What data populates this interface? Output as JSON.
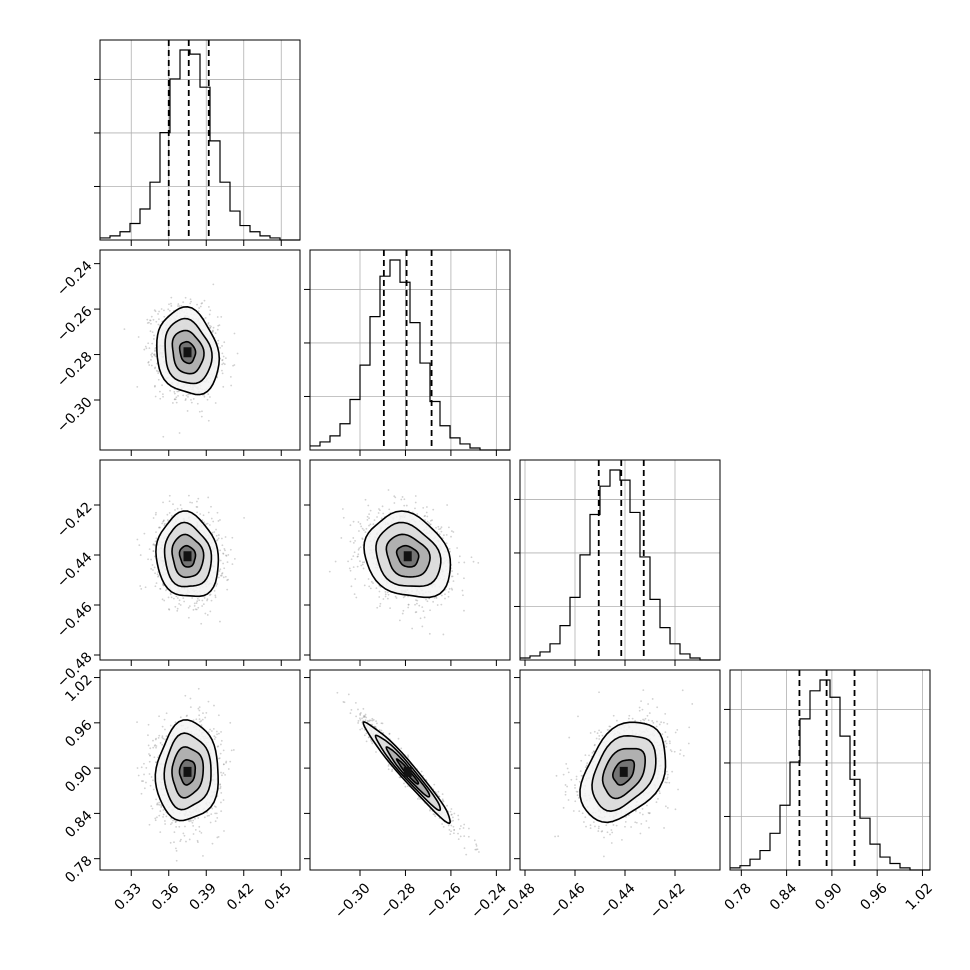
{
  "chart_data": {
    "type": "corner",
    "grid": true,
    "parameters": [
      {
        "range": [
          0.305,
          0.465
        ],
        "ticks": [
          0.33,
          0.36,
          0.39,
          0.42,
          0.45
        ],
        "tick_labels": [
          "0.33",
          "0.36",
          "0.39",
          "0.42",
          "0.45"
        ],
        "mean": 0.375,
        "sd": 0.0125,
        "quantiles": [
          0.36,
          0.376,
          0.392
        ]
      },
      {
        "range": [
          -0.322,
          -0.234
        ],
        "ticks": [
          -0.3,
          -0.28,
          -0.26,
          -0.24
        ],
        "tick_labels": [
          "−0.30",
          "−0.28",
          "−0.26",
          "−0.24"
        ],
        "mean": -0.279,
        "sd": 0.0095,
        "quantiles": [
          -0.2895,
          -0.2795,
          -0.2685
        ]
      },
      {
        "range": [
          -0.482,
          -0.402
        ],
        "ticks": [
          -0.48,
          -0.46,
          -0.44,
          -0.42
        ],
        "tick_labels": [
          "−0.48",
          "−0.46",
          "−0.44",
          "−0.42"
        ],
        "mean": -0.4405,
        "sd": 0.0085,
        "quantiles": [
          -0.4505,
          -0.4415,
          -0.4325
        ]
      },
      {
        "range": [
          0.765,
          1.03
        ],
        "ticks": [
          0.78,
          0.84,
          0.9,
          0.96,
          1.02
        ],
        "tick_labels": [
          "0.78",
          "0.84",
          "0.90",
          "0.96",
          "1.02"
        ],
        "mean": 0.895,
        "sd": 0.033,
        "quantiles": [
          0.857,
          0.893,
          0.93
        ]
      }
    ],
    "histograms": [
      {
        "counts": [
          1,
          2,
          4,
          8,
          15,
          28,
          52,
          78,
          92,
          90,
          74,
          48,
          28,
          14,
          7,
          4,
          2,
          1,
          0,
          0
        ]
      },
      {
        "counts": [
          2,
          4,
          7,
          13,
          25,
          42,
          66,
          86,
          94,
          83,
          63,
          43,
          24,
          12,
          6,
          3,
          1,
          0,
          0,
          0
        ]
      },
      {
        "counts": [
          1,
          2,
          4,
          8,
          17,
          31,
          52,
          72,
          86,
          94,
          89,
          73,
          51,
          30,
          16,
          8,
          3,
          1,
          0,
          0
        ]
      },
      {
        "counts": [
          1,
          2,
          5,
          9,
          17,
          30,
          50,
          70,
          83,
          88,
          80,
          62,
          42,
          24,
          12,
          6,
          3,
          1,
          0,
          0
        ]
      }
    ],
    "correlations": [
      {
        "i": 1,
        "j": 0,
        "rho": -0.15
      },
      {
        "i": 2,
        "j": 0,
        "rho": -0.1
      },
      {
        "i": 2,
        "j": 1,
        "rho": -0.2
      },
      {
        "i": 3,
        "j": 0,
        "rho": 0.05
      },
      {
        "i": 3,
        "j": 1,
        "rho": -0.97
      },
      {
        "i": 3,
        "j": 2,
        "rho": 0.35
      }
    ],
    "contour_levels_sigma": [
      0.5,
      1.0,
      1.5,
      2.0
    ]
  }
}
